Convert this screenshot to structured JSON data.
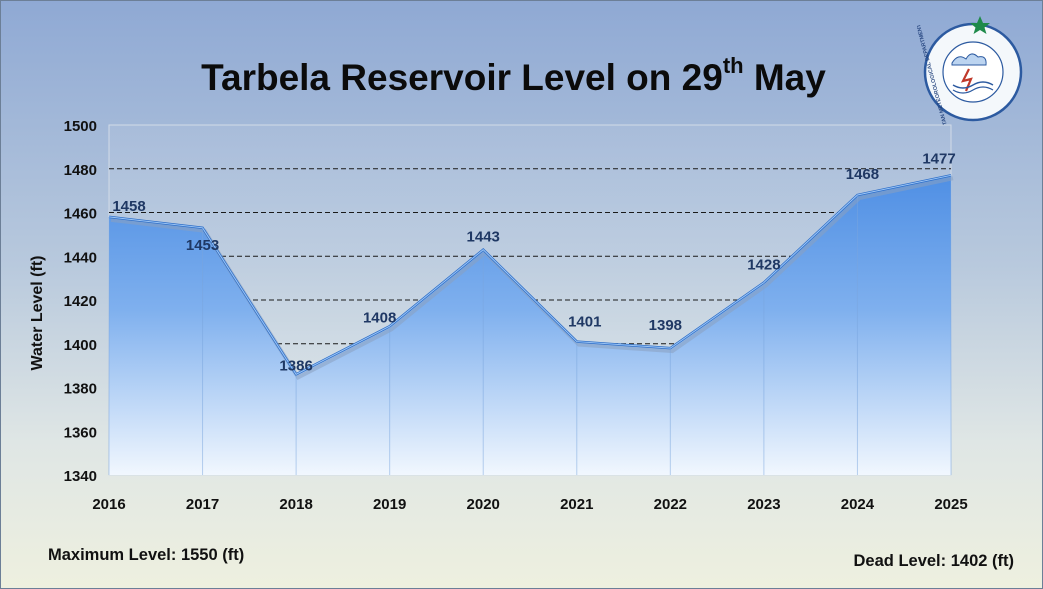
{
  "page": {
    "title_main": "Tarbela Reservoir Level on 29",
    "title_sup": "th",
    "title_end": " May",
    "footer_left": "Maximum Level: 1550 (ft)",
    "footer_right": "Dead Level: 1402 (ft)",
    "logo_text": "PAKISTAN METEOROLOGICAL DEPARTMENT"
  },
  "chart_data": {
    "type": "area",
    "title": "Tarbela Reservoir Level on 29th May",
    "xlabel": "",
    "ylabel": "Water Level (ft)",
    "categories": [
      "2016",
      "2017",
      "2018",
      "2019",
      "2020",
      "2021",
      "2022",
      "2023",
      "2024",
      "2025"
    ],
    "values": [
      1458,
      1453,
      1386,
      1408,
      1443,
      1401,
      1398,
      1428,
      1468,
      1477
    ],
    "data_labels": [
      "1458",
      "1453",
      "1386",
      "1408",
      "1443",
      "1401",
      "1398",
      "1428",
      "1468",
      "1477"
    ],
    "ylim": [
      1340,
      1500
    ],
    "yticks": [
      "1340",
      "1360",
      "1380",
      "1400",
      "1420",
      "1440",
      "1460",
      "1480",
      "1500"
    ],
    "grid": "horizontal-dashed",
    "legend": "none",
    "colors": {
      "area_top": "#4f8fe4",
      "area_bottom": "#f1f7fe",
      "line": "#2f6fc8",
      "label": "#1f3864",
      "gridline": "#1a1a1a"
    }
  }
}
